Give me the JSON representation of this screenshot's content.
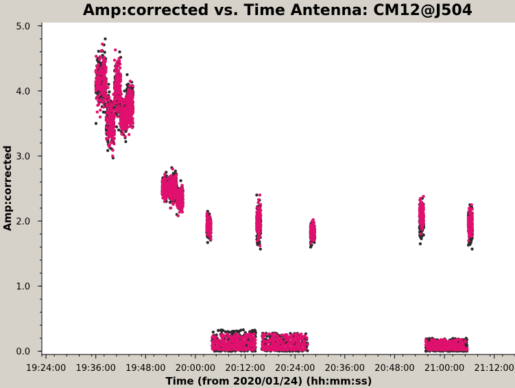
{
  "chart_data": {
    "type": "scatter",
    "title": "Amp:corrected vs. Time Antenna: CM12@J504",
    "xlabel": "Time (from 2020/01/24) (hh:mm:ss)",
    "ylabel": "Amp:corrected",
    "x_ticks": [
      "19:24:00",
      "19:36:00",
      "19:48:00",
      "20:00:00",
      "20:12:00",
      "20:24:00",
      "20:36:00",
      "20:48:00",
      "21:00:00",
      "21:12:00"
    ],
    "y_ticks": [
      "0.0",
      "1.0",
      "2.0",
      "3.0",
      "4.0",
      "5.0"
    ],
    "xlim": [
      "19:23:00",
      "21:17:00"
    ],
    "ylim": [
      -0.05,
      5.05
    ],
    "grid": false,
    "legend": "none",
    "colors": {
      "series_a": "#2b2b2b",
      "series_b": "#e0106e",
      "background": "#ffffff",
      "frame": "#d6d2c9"
    },
    "series": [
      {
        "color": "#2b2b2b",
        "clusters": [
          {
            "x_start": "19:36:00",
            "x_end": "19:38:30",
            "y_min": 3.5,
            "y_max": 4.8
          },
          {
            "x_start": "19:38:30",
            "x_end": "19:40:30",
            "y_min": 2.97,
            "y_max": 4.1
          },
          {
            "x_start": "19:40:30",
            "x_end": "19:42:00",
            "y_min": 3.4,
            "y_max": 4.6
          },
          {
            "x_start": "19:42:00",
            "x_end": "19:43:30",
            "y_min": 3.22,
            "y_max": 4.0
          },
          {
            "x_start": "19:43:30",
            "x_end": "19:45:00",
            "y_min": 3.45,
            "y_max": 4.25
          },
          {
            "x_start": "19:52:00",
            "x_end": "19:53:45",
            "y_min": 2.3,
            "y_max": 2.75
          },
          {
            "x_start": "19:53:45",
            "x_end": "19:55:30",
            "y_min": 2.2,
            "y_max": 2.82
          },
          {
            "x_start": "19:55:30",
            "x_end": "19:57:00",
            "y_min": 2.1,
            "y_max": 2.62
          },
          {
            "x_start": "20:02:45",
            "x_end": "20:03:45",
            "y_min": 1.67,
            "y_max": 2.15
          },
          {
            "x_start": "20:14:45",
            "x_end": "20:15:45",
            "y_min": 1.57,
            "y_max": 2.4
          },
          {
            "x_start": "20:27:45",
            "x_end": "20:28:45",
            "y_min": 1.6,
            "y_max": 2.0
          },
          {
            "x_start": "20:54:00",
            "x_end": "20:55:00",
            "y_min": 1.65,
            "y_max": 2.35
          },
          {
            "x_start": "21:05:45",
            "x_end": "21:06:45",
            "y_min": 1.57,
            "y_max": 2.25
          },
          {
            "x_start": "20:04:00",
            "x_end": "20:14:30",
            "y_min": 0.0,
            "y_max": 0.33
          },
          {
            "x_start": "20:16:00",
            "x_end": "20:27:00",
            "y_min": 0.0,
            "y_max": 0.28
          },
          {
            "x_start": "20:55:30",
            "x_end": "21:05:30",
            "y_min": 0.0,
            "y_max": 0.2
          }
        ]
      },
      {
        "color": "#e0106e",
        "clusters": [
          {
            "x_start": "19:36:00",
            "x_end": "19:38:30",
            "y_min": 3.6,
            "y_max": 4.72
          },
          {
            "x_start": "19:38:30",
            "x_end": "19:40:30",
            "y_min": 3.0,
            "y_max": 4.05
          },
          {
            "x_start": "19:40:30",
            "x_end": "19:42:00",
            "y_min": 3.5,
            "y_max": 4.63
          },
          {
            "x_start": "19:42:00",
            "x_end": "19:43:30",
            "y_min": 3.3,
            "y_max": 3.95
          },
          {
            "x_start": "19:43:30",
            "x_end": "19:45:00",
            "y_min": 3.33,
            "y_max": 4.15
          },
          {
            "x_start": "19:52:00",
            "x_end": "19:53:45",
            "y_min": 2.3,
            "y_max": 2.72
          },
          {
            "x_start": "19:53:45",
            "x_end": "19:55:30",
            "y_min": 2.2,
            "y_max": 2.8
          },
          {
            "x_start": "19:55:30",
            "x_end": "19:57:00",
            "y_min": 2.08,
            "y_max": 2.55
          },
          {
            "x_start": "20:02:45",
            "x_end": "20:03:45",
            "y_min": 1.72,
            "y_max": 2.12
          },
          {
            "x_start": "20:14:45",
            "x_end": "20:15:45",
            "y_min": 1.62,
            "y_max": 2.4
          },
          {
            "x_start": "20:27:45",
            "x_end": "20:28:45",
            "y_min": 1.66,
            "y_max": 2.02
          },
          {
            "x_start": "20:54:00",
            "x_end": "20:55:00",
            "y_min": 1.8,
            "y_max": 2.38
          },
          {
            "x_start": "21:05:45",
            "x_end": "21:06:45",
            "y_min": 1.7,
            "y_max": 2.25
          },
          {
            "x_start": "20:04:00",
            "x_end": "20:14:30",
            "y_min": 0.02,
            "y_max": 0.27
          },
          {
            "x_start": "20:16:00",
            "x_end": "20:27:00",
            "y_min": 0.02,
            "y_max": 0.27
          },
          {
            "x_start": "20:55:30",
            "x_end": "21:05:30",
            "y_min": 0.02,
            "y_max": 0.18
          }
        ]
      }
    ]
  }
}
